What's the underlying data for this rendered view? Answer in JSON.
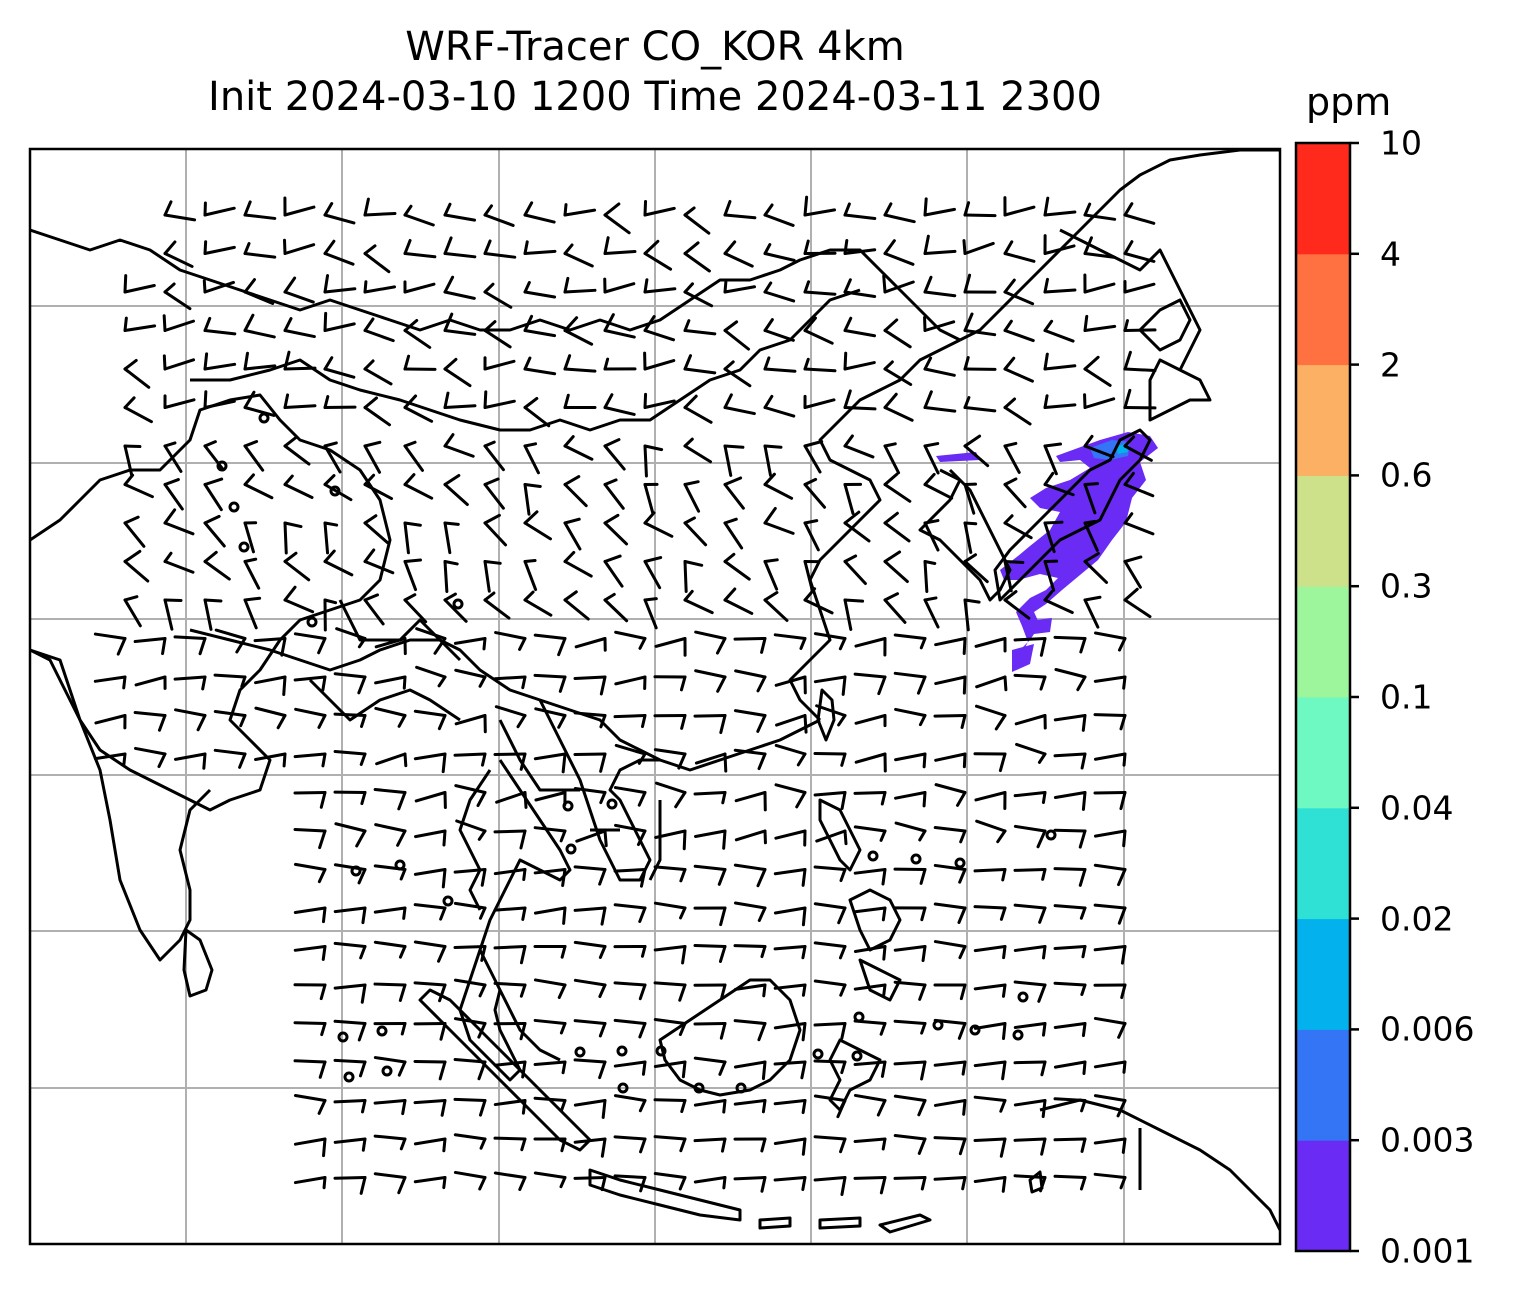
{
  "title": {
    "line1": "WRF-Tracer CO_KOR 4km",
    "line2": "Init 2024-03-10 1200 Time 2024-03-11 2300"
  },
  "colorbar": {
    "unit": "ppm",
    "levels": [
      "0.001",
      "0.003",
      "0.006",
      "0.02",
      "0.04",
      "0.1",
      "0.3",
      "0.6",
      "2",
      "4",
      "10"
    ],
    "colors": [
      "#6a2bf5",
      "#3475f5",
      "#03b1ec",
      "#2fe0d5",
      "#6ef8c2",
      "#9df59c",
      "#cde08a",
      "#fcb063",
      "#ff7141",
      "#ff2a1b"
    ]
  },
  "map": {
    "projection": "Mercator",
    "layers": [
      "coastlines",
      "country-borders",
      "gridlines",
      "wind-barbs",
      "co-tracer-fill"
    ]
  }
}
